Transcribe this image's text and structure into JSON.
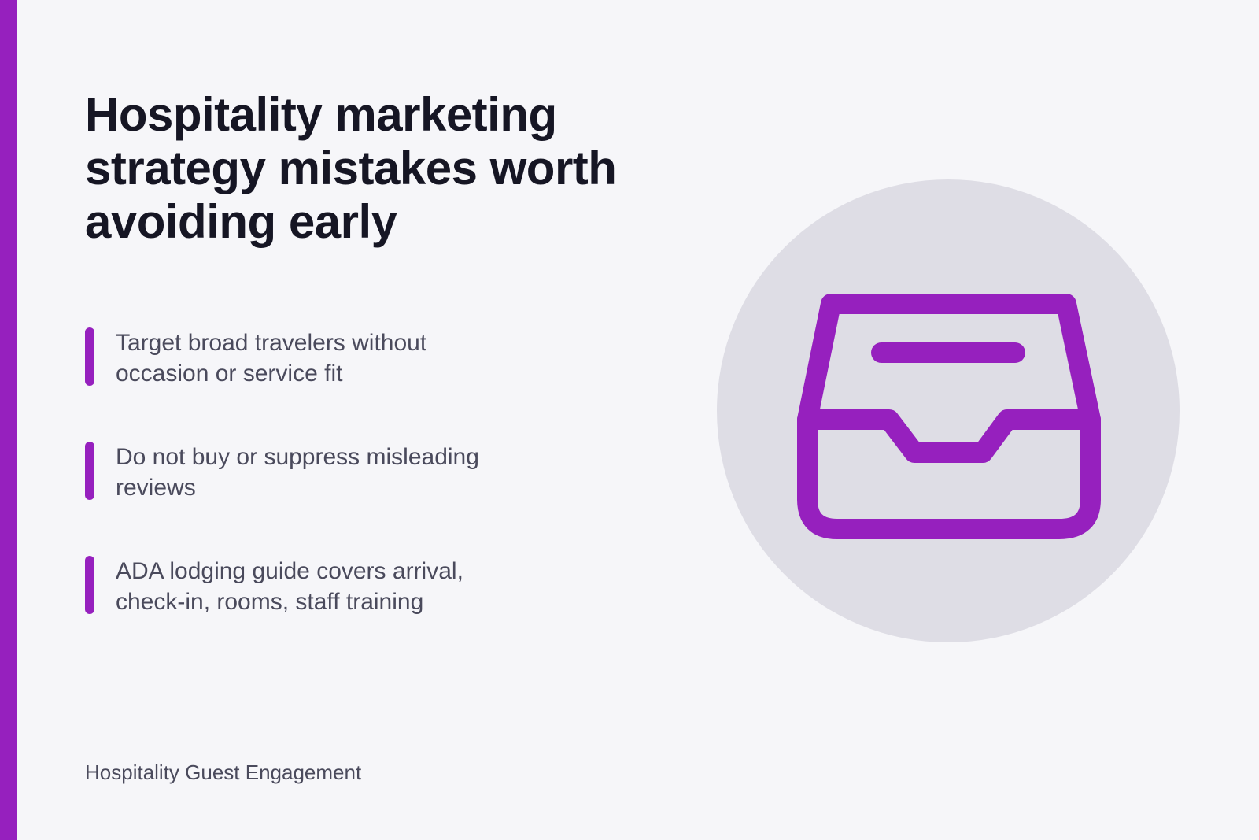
{
  "header": {
    "title": "Hospitality marketing strategy mistakes worth avoiding early"
  },
  "bullets": [
    "Target broad travelers without occasion or service fit",
    "Do not buy or suppress misleading reviews",
    "ADA lodging guide covers arrival, check-in, rooms, staff training"
  ],
  "footer": "Hospitality Guest Engagement"
}
